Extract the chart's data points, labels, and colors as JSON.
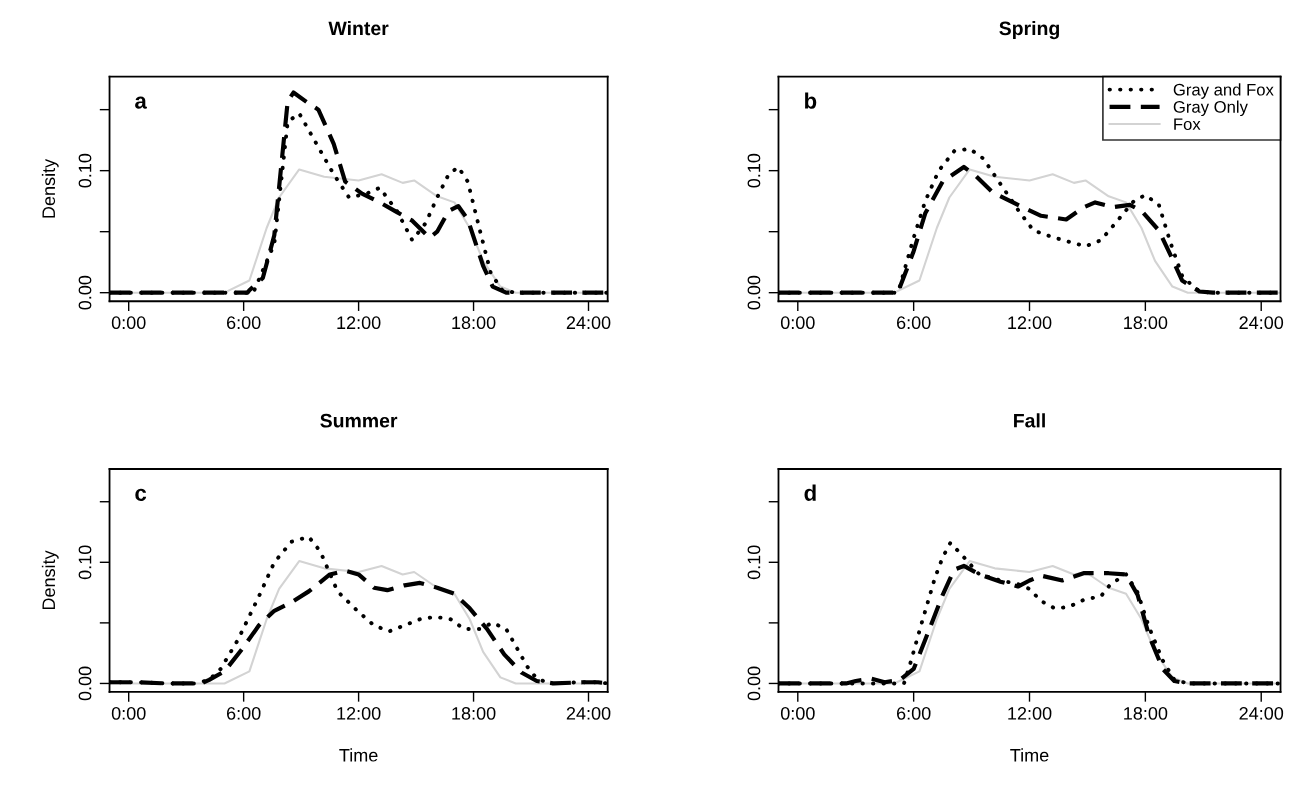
{
  "chart_data": [
    {
      "type": "line",
      "title": "Winter",
      "ylabel": "Density",
      "annotations": [
        "a"
      ],
      "xlim": [
        -1,
        25
      ],
      "ylim": [
        -0.007,
        0.177
      ],
      "xticks": [
        {
          "value": 0,
          "label": "0:00"
        },
        {
          "value": 6,
          "label": "6:00"
        },
        {
          "value": 12,
          "label": "12:00"
        },
        {
          "value": 18,
          "label": "18:00"
        },
        {
          "value": 24,
          "label": "24:00"
        }
      ],
      "yticks": [
        {
          "value": 0,
          "label": "0.00"
        },
        {
          "value": 0.05,
          "label": null
        },
        {
          "value": 0.1,
          "label": "0.10"
        },
        {
          "value": 0.15,
          "label": null
        }
      ],
      "grid": false,
      "legend": false,
      "series": [
        {
          "color": "#d3d3d3",
          "line_style": "solid",
          "x": [
            -1,
            5,
            6.3,
            7.2,
            7.85,
            8.9,
            10.2,
            12,
            13.2,
            14.3,
            14.9,
            16.1,
            17,
            17.8,
            18.5,
            19.4,
            20.2,
            25
          ],
          "values": [
            0,
            0,
            0.01,
            0.053,
            0.078,
            0.101,
            0.095,
            0.092,
            0.097,
            0.09,
            0.092,
            0.079,
            0.074,
            0.053,
            0.026,
            0.005,
            0,
            0
          ]
        },
        {
          "color": "#000000",
          "line_style": "dotted",
          "x": [
            -1,
            6.5,
            7.6,
            8.3,
            8.9,
            9.8,
            10.7,
            11.5,
            12.4,
            13.1,
            14,
            14.8,
            15.5,
            16.1,
            16.7,
            17.2,
            17.7,
            18.3,
            18.9,
            19.5,
            20.2,
            25
          ],
          "values": [
            0,
            0,
            0.04,
            0.14,
            0.147,
            0.122,
            0.097,
            0.078,
            0.081,
            0.086,
            0.067,
            0.043,
            0.057,
            0.078,
            0.097,
            0.103,
            0.091,
            0.053,
            0.016,
            0.002,
            0,
            0
          ]
        },
        {
          "color": "#000000",
          "line_style": "dashed",
          "x": [
            -1,
            6.2,
            6.3,
            7,
            7.6,
            8.3,
            8.6,
            9.4,
            9.9,
            10.7,
            11.3,
            12.2,
            13.1,
            14,
            14.8,
            15.7,
            16.1,
            16.7,
            17.2,
            17.7,
            18.5,
            19,
            19.7,
            25
          ],
          "values": [
            0,
            0,
            0.002,
            0.012,
            0.047,
            0.157,
            0.164,
            0.155,
            0.15,
            0.122,
            0.091,
            0.081,
            0.074,
            0.066,
            0.059,
            0.045,
            0.05,
            0.067,
            0.071,
            0.06,
            0.022,
            0.005,
            0,
            0
          ]
        }
      ]
    },
    {
      "type": "line",
      "title": "Spring",
      "annotations": [
        "b"
      ],
      "xlim": [
        -1,
        25
      ],
      "ylim": [
        -0.007,
        0.177
      ],
      "xticks": [
        {
          "value": 0,
          "label": "0:00"
        },
        {
          "value": 6,
          "label": "6:00"
        },
        {
          "value": 12,
          "label": "12:00"
        },
        {
          "value": 18,
          "label": "18:00"
        },
        {
          "value": 24,
          "label": "24:00"
        }
      ],
      "yticks": [
        {
          "value": 0,
          "label": "0.00"
        },
        {
          "value": 0.05,
          "label": null
        },
        {
          "value": 0.1,
          "label": "0.10"
        },
        {
          "value": 0.15,
          "label": null
        }
      ],
      "grid": false,
      "legend": "top right",
      "series": [
        {
          "name": "Fox",
          "color": "#d3d3d3",
          "line_style": "solid",
          "x": [
            -1,
            5,
            6.3,
            7.2,
            7.85,
            8.9,
            10.2,
            12,
            13.2,
            14.3,
            14.9,
            16.1,
            17,
            17.8,
            18.5,
            19.4,
            20.2,
            25
          ],
          "values": [
            0,
            0,
            0.01,
            0.053,
            0.078,
            0.101,
            0.095,
            0.092,
            0.097,
            0.09,
            0.092,
            0.079,
            0.074,
            0.053,
            0.026,
            0.005,
            0,
            0
          ]
        },
        {
          "name": "Gray and Fox",
          "color": "#000000",
          "line_style": "dotted",
          "x": [
            -1,
            5.2,
            5.55,
            6,
            6.6,
            7.3,
            8.1,
            8.9,
            9.6,
            10.5,
            11.4,
            12.2,
            13.3,
            14.2,
            14.9,
            15.7,
            16.5,
            17.4,
            18,
            18.7,
            19.3,
            19.9,
            20.6,
            21.3,
            25
          ],
          "values": [
            0,
            0,
            0.02,
            0.045,
            0.075,
            0.1,
            0.116,
            0.118,
            0.11,
            0.089,
            0.068,
            0.051,
            0.045,
            0.041,
            0.038,
            0.043,
            0.058,
            0.075,
            0.08,
            0.072,
            0.041,
            0.014,
            0.003,
            0,
            0
          ]
        },
        {
          "name": "Gray Only",
          "color": "#000000",
          "line_style": "dashed",
          "x": [
            -1,
            5.2,
            5.3,
            6,
            6.6,
            7.5,
            8.6,
            9.2,
            10.1,
            11.4,
            12.6,
            13.9,
            14.8,
            15.4,
            16.3,
            17.2,
            17.8,
            18.7,
            19.3,
            19.9,
            20.8,
            21.5,
            25
          ],
          "values": [
            0,
            0,
            0.005,
            0.034,
            0.065,
            0.091,
            0.103,
            0.096,
            0.082,
            0.072,
            0.063,
            0.06,
            0.07,
            0.074,
            0.07,
            0.072,
            0.067,
            0.051,
            0.031,
            0.01,
            0.001,
            0,
            0
          ]
        }
      ]
    },
    {
      "type": "line",
      "title": "Summer",
      "ylabel": "Density",
      "xlabel": "Time",
      "annotations": [
        "c"
      ],
      "xlim": [
        -1,
        25
      ],
      "ylim": [
        -0.007,
        0.177
      ],
      "xticks": [
        {
          "value": 0,
          "label": "0:00"
        },
        {
          "value": 6,
          "label": "6:00"
        },
        {
          "value": 12,
          "label": "12:00"
        },
        {
          "value": 18,
          "label": "18:00"
        },
        {
          "value": 24,
          "label": "24:00"
        }
      ],
      "yticks": [
        {
          "value": 0,
          "label": "0.00"
        },
        {
          "value": 0.05,
          "label": null
        },
        {
          "value": 0.1,
          "label": "0.10"
        },
        {
          "value": 0.15,
          "label": null
        }
      ],
      "grid": false,
      "legend": false,
      "series": [
        {
          "color": "#d3d3d3",
          "line_style": "solid",
          "x": [
            -1,
            5,
            6.3,
            7.2,
            7.85,
            8.9,
            10.2,
            12,
            13.2,
            14.3,
            14.9,
            16.1,
            17,
            17.8,
            18.5,
            19.4,
            20.2,
            25
          ],
          "values": [
            0,
            0,
            0.01,
            0.053,
            0.078,
            0.101,
            0.095,
            0.092,
            0.097,
            0.09,
            0.092,
            0.079,
            0.074,
            0.053,
            0.026,
            0.005,
            0,
            0
          ]
        },
        {
          "color": "#000000",
          "line_style": "dotted",
          "x": [
            -1,
            0.5,
            2,
            3.5,
            4.2,
            4.8,
            5.7,
            6.8,
            7.6,
            8.5,
            9.4,
            10,
            10.9,
            12,
            12.8,
            13.6,
            14.4,
            15.2,
            16,
            16.8,
            17.5,
            18.3,
            19,
            19.7,
            20.2,
            20.8,
            21.3,
            22,
            23.5,
            24.5,
            25
          ],
          "values": [
            0.001,
            0.001,
            0,
            0,
            0.003,
            0.012,
            0.036,
            0.072,
            0.1,
            0.117,
            0.121,
            0.109,
            0.076,
            0.059,
            0.048,
            0.043,
            0.048,
            0.053,
            0.055,
            0.053,
            0.045,
            0.045,
            0.05,
            0.045,
            0.031,
            0.014,
            0.004,
            0,
            0.001,
            0.001,
            0
          ]
        },
        {
          "color": "#000000",
          "line_style": "dashed",
          "x": [
            -1,
            0.5,
            2,
            3.8,
            4.2,
            5,
            5.9,
            6.8,
            7.6,
            8.5,
            9.4,
            10.5,
            11.3,
            12,
            12.8,
            13.5,
            14.4,
            15.2,
            16.1,
            17,
            17.8,
            18.7,
            19.6,
            20.5,
            21.3,
            22.2,
            23.7,
            24.5,
            25
          ],
          "values": [
            0.001,
            0.001,
            0,
            0,
            0.003,
            0.01,
            0.028,
            0.048,
            0.06,
            0.067,
            0.076,
            0.09,
            0.093,
            0.09,
            0.079,
            0.077,
            0.081,
            0.083,
            0.079,
            0.074,
            0.062,
            0.045,
            0.024,
            0.009,
            0.002,
            0,
            0.001,
            0.001,
            0
          ]
        }
      ]
    },
    {
      "type": "line",
      "title": "Fall",
      "xlabel": "Time",
      "annotations": [
        "d"
      ],
      "xlim": [
        -1,
        25
      ],
      "ylim": [
        -0.007,
        0.177
      ],
      "xticks": [
        {
          "value": 0,
          "label": "0:00"
        },
        {
          "value": 6,
          "label": "6:00"
        },
        {
          "value": 12,
          "label": "12:00"
        },
        {
          "value": 18,
          "label": "18:00"
        },
        {
          "value": 24,
          "label": "24:00"
        }
      ],
      "yticks": [
        {
          "value": 0,
          "label": "0.00"
        },
        {
          "value": 0.05,
          "label": null
        },
        {
          "value": 0.1,
          "label": "0.10"
        },
        {
          "value": 0.15,
          "label": null
        }
      ],
      "grid": false,
      "legend": false,
      "series": [
        {
          "color": "#d3d3d3",
          "line_style": "solid",
          "x": [
            -1,
            5,
            6.3,
            7.2,
            7.85,
            8.9,
            10.2,
            12,
            13.2,
            14.3,
            14.9,
            16.1,
            17,
            17.8,
            18.5,
            19.4,
            20.2,
            25
          ],
          "values": [
            0,
            0,
            0.01,
            0.053,
            0.078,
            0.101,
            0.095,
            0.092,
            0.097,
            0.09,
            0.092,
            0.079,
            0.074,
            0.053,
            0.026,
            0.005,
            0,
            0
          ]
        },
        {
          "color": "#000000",
          "line_style": "dotted",
          "x": [
            -1,
            5.5,
            5.8,
            6.4,
            7.1,
            7.5,
            7.9,
            8.5,
            9.4,
            10.5,
            11.4,
            12,
            12.6,
            13.3,
            14,
            14.8,
            15.7,
            16.2,
            17,
            17.6,
            18.2,
            18.9,
            19.5,
            20.2,
            25
          ],
          "values": [
            0,
            0,
            0.015,
            0.049,
            0.087,
            0.104,
            0.116,
            0.106,
            0.09,
            0.085,
            0.082,
            0.078,
            0.068,
            0.062,
            0.063,
            0.069,
            0.072,
            0.082,
            0.09,
            0.075,
            0.046,
            0.019,
            0.003,
            0,
            0
          ]
        },
        {
          "color": "#000000",
          "line_style": "dashed",
          "x": [
            -1,
            2.5,
            3,
            3.8,
            4.5,
            5.3,
            6,
            6.6,
            7.5,
            8.1,
            8.6,
            9.4,
            10.5,
            11.4,
            12,
            12.6,
            13.7,
            14.8,
            16.1,
            17,
            17.6,
            18.2,
            18.9,
            19.5,
            20.2,
            25
          ],
          "values": [
            0,
            0,
            0.002,
            0.004,
            0.001,
            0.003,
            0.012,
            0.036,
            0.073,
            0.094,
            0.097,
            0.09,
            0.084,
            0.08,
            0.085,
            0.089,
            0.085,
            0.091,
            0.091,
            0.09,
            0.073,
            0.039,
            0.012,
            0.002,
            0,
            0
          ]
        }
      ]
    }
  ]
}
